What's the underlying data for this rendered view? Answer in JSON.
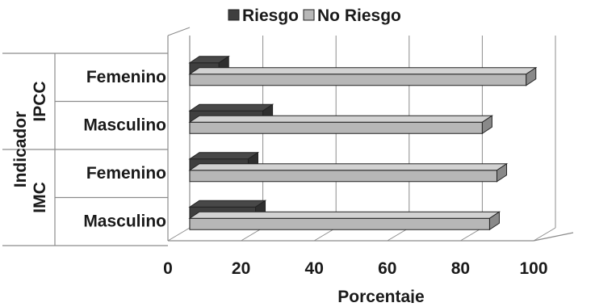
{
  "chart_data": {
    "type": "bar",
    "orientation": "horizontal",
    "three_d": true,
    "xlabel": "Porcentaje",
    "ylabel_lines": [
      "Indicador"
    ],
    "xlim": [
      0,
      100
    ],
    "x_ticks": [
      "0",
      "20",
      "40",
      "60",
      "80",
      "100"
    ],
    "legend_position": "top",
    "grid": true,
    "groups": [
      {
        "label": "IPCC",
        "categories": [
          "Femenino",
          "Masculino"
        ]
      },
      {
        "label": "IMC",
        "categories": [
          "Femenino",
          "Masculino"
        ]
      }
    ],
    "categories": [
      "IPCC Femenino",
      "IPCC Masculino",
      "IMC Femenino",
      "IMC Masculino"
    ],
    "category_labels": [
      "Femenino",
      "Masculino",
      "Femenino",
      "Masculino"
    ],
    "series": [
      {
        "name": "Riesgo",
        "color": "#3f3f3f",
        "values": [
          8,
          20,
          16,
          18
        ]
      },
      {
        "name": "No Riesgo",
        "color": "#b7b7b7",
        "values": [
          92,
          80,
          84,
          82
        ]
      }
    ]
  }
}
